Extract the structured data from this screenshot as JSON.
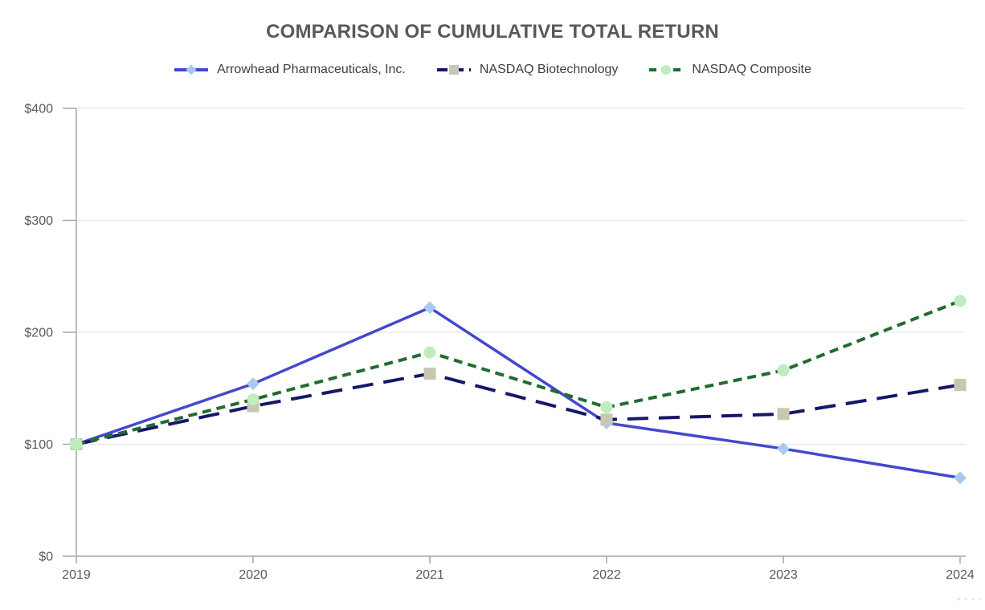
{
  "chart_data": {
    "type": "line",
    "title": "COMPARISON OF CUMULATIVE TOTAL RETURN",
    "categories": [
      "2019",
      "2020",
      "2021",
      "2022",
      "2023",
      "2024"
    ],
    "series": [
      {
        "name": "Arrowhead Pharmaceuticals, Inc.",
        "values": [
          100,
          154,
          222,
          119,
          96,
          70
        ],
        "line_color": "#4547cd",
        "line_style": "solid",
        "line_width": 3.5,
        "marker": "diamond",
        "marker_color": "#a7cbf0"
      },
      {
        "name": "NASDAQ Biotechnology",
        "values": [
          100,
          134,
          163,
          122,
          127,
          153
        ],
        "line_color": "#16166b",
        "line_style": "long-dash",
        "line_width": 4,
        "marker": "square",
        "marker_color": "#c9c6b2"
      },
      {
        "name": "NASDAQ Composite",
        "values": [
          100,
          140,
          182,
          133,
          166,
          228
        ],
        "line_color": "#226b30",
        "line_style": "short-dash",
        "line_width": 4,
        "marker": "circle",
        "marker_color": "#bfedbd"
      }
    ],
    "xlabel": "",
    "ylabel": "",
    "ylim": [
      0,
      400
    ],
    "y_tick_labels": [
      "$0",
      "$100",
      "$200",
      "$300",
      "$400"
    ],
    "grid": true,
    "legend_position": "top",
    "colors": {
      "title": "#595959",
      "tick_labels": "#595959",
      "legend_text": "#3f3f3f",
      "axis_line": "#a6a6a6",
      "gridline": "#e4e4e4"
    }
  }
}
